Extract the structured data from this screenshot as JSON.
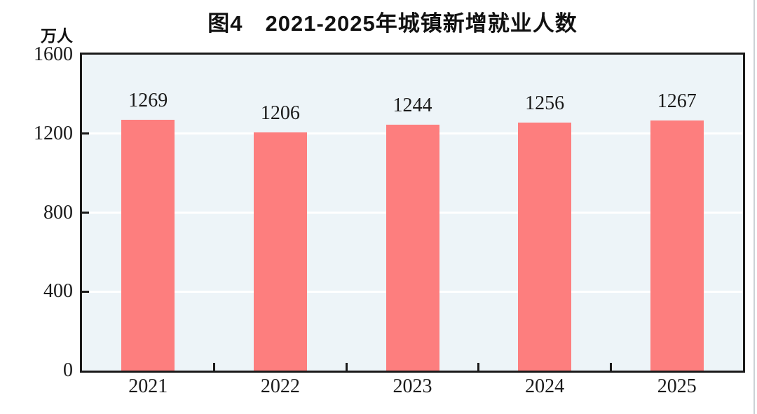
{
  "figure": {
    "unit_label": "万人"
  },
  "chart_data": {
    "type": "bar",
    "title": "图4　2021-2025年城镇新增就业人数",
    "categories": [
      "2021",
      "2022",
      "2023",
      "2024",
      "2025"
    ],
    "values": [
      1269,
      1206,
      1244,
      1256,
      1267
    ],
    "xlabel": "",
    "ylabel": "万人",
    "ylim": [
      0,
      1600
    ],
    "yticks": [
      0,
      400,
      800,
      1200,
      1600
    ],
    "legend_position": "none",
    "grid": "horizontal-white-lines-at-yticks",
    "value_label_position": "above-bars",
    "colors": {
      "bar": "#FD7E7E",
      "plot_background": "#EDF4F8",
      "gridline": "#FFFFFF",
      "axis": "#1A1A1A",
      "text": "#1A1A1A",
      "title_text": "#111111"
    }
  }
}
